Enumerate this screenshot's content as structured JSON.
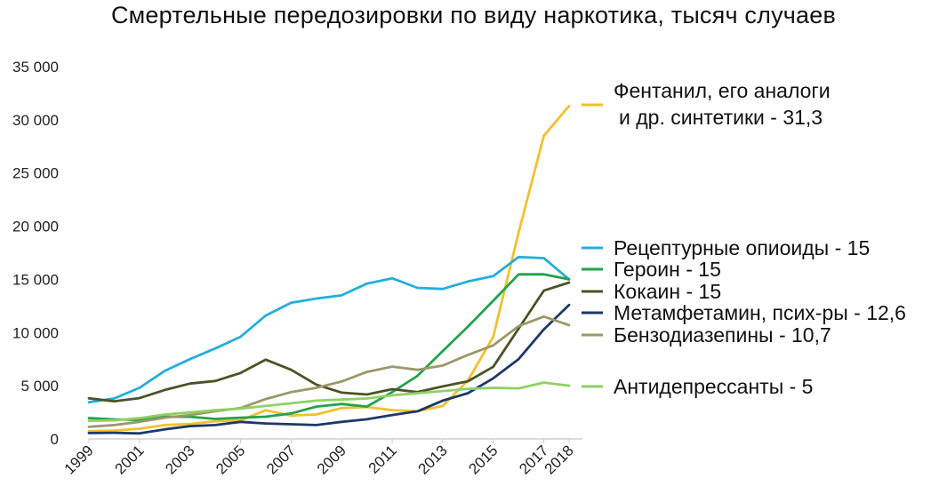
{
  "chart_data": {
    "type": "line",
    "title": "Смертельные передозировки по виду наркотика, тысяч случаев",
    "xlabel": "",
    "ylabel": "",
    "x": [
      1999,
      2000,
      2001,
      2002,
      2003,
      2004,
      2005,
      2006,
      2007,
      2008,
      2009,
      2010,
      2011,
      2012,
      2013,
      2014,
      2015,
      2016,
      2017,
      2018
    ],
    "x_tick_labels": [
      "1999",
      "2001",
      "2003",
      "2005",
      "2007",
      "2009",
      "2011",
      "2013",
      "2015",
      "2017",
      "2018"
    ],
    "y_tick_labels": [
      "0",
      "5 000",
      "10 000",
      "15 000",
      "20 000",
      "25 000",
      "30 000",
      "35 000"
    ],
    "ylim": [
      0,
      35000
    ],
    "grid": false,
    "legend_position": "right",
    "series": [
      {
        "name": "Фентанил, его аналоги\nи др. синтетики - 31,3",
        "color": "#F2C12E",
        "values": [
          730,
          780,
          960,
          1300,
          1400,
          1660,
          1740,
          2700,
          2200,
          2300,
          2900,
          3000,
          2700,
          2600,
          3100,
          5500,
          9600,
          19400,
          28500,
          31300
        ]
      },
      {
        "name": "Рецептурные опиоиды - 15",
        "color": "#25AEDB",
        "values": [
          3440,
          3800,
          4800,
          6400,
          7500,
          8500,
          9600,
          11600,
          12800,
          13200,
          13500,
          14600,
          15100,
          14200,
          14100,
          14800,
          15300,
          17100,
          17000,
          15000
        ]
      },
      {
        "name": "Героин - 15",
        "color": "#23A34C",
        "values": [
          1960,
          1840,
          1780,
          2090,
          2080,
          1880,
          2000,
          2090,
          2400,
          3040,
          3280,
          3040,
          4400,
          5930,
          8260,
          10570,
          12990,
          15470,
          15480,
          15000
        ]
      },
      {
        "name": "Кокаин - 15",
        "color": "#4A5426",
        "values": [
          3820,
          3540,
          3830,
          4600,
          5200,
          5450,
          6200,
          7450,
          6500,
          5100,
          4350,
          4180,
          4680,
          4400,
          4940,
          5420,
          6780,
          10370,
          13940,
          14700
        ]
      },
      {
        "name": "Метамфетамин, псих-ры - 12,6",
        "color": "#1F3868",
        "values": [
          550,
          580,
          520,
          900,
          1200,
          1300,
          1600,
          1450,
          1380,
          1300,
          1600,
          1850,
          2250,
          2600,
          3600,
          4300,
          5700,
          7500,
          10300,
          12600
        ]
      },
      {
        "name": "Бензодиазепины - 10,7",
        "color": "#9B9869",
        "values": [
          1140,
          1300,
          1600,
          2000,
          2250,
          2600,
          2900,
          3750,
          4400,
          4800,
          5400,
          6300,
          6800,
          6500,
          6900,
          7900,
          8800,
          10600,
          11500,
          10700
        ]
      },
      {
        "name": "Антидепрессанты - 5",
        "color": "#8FD163",
        "values": [
          1700,
          1750,
          1950,
          2300,
          2500,
          2700,
          2850,
          3100,
          3350,
          3600,
          3700,
          3800,
          4100,
          4300,
          4500,
          4700,
          4800,
          4750,
          5300,
          5000
        ]
      }
    ]
  }
}
